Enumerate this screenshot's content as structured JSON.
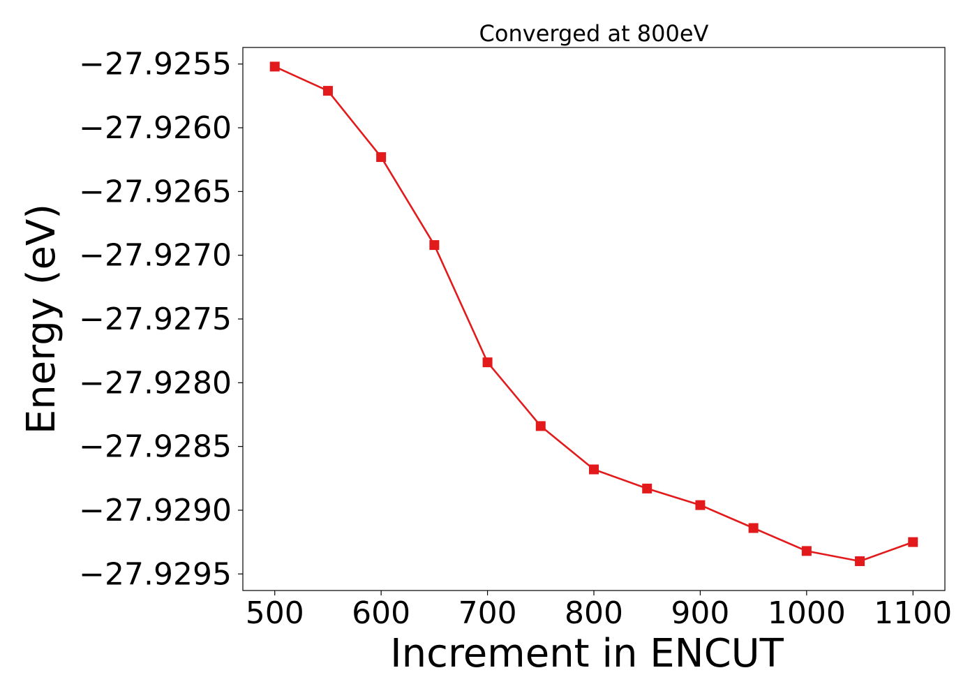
{
  "chart_data": {
    "type": "line",
    "title": "Converged at 800eV",
    "xlabel": "Increment in ENCUT",
    "ylabel": "Energy (eV)",
    "xlim": [
      470,
      1130
    ],
    "ylim": [
      -27.92963,
      -27.92537
    ],
    "xticks": [
      500,
      600,
      700,
      800,
      900,
      1000,
      1100
    ],
    "xtick_labels": [
      "500",
      "600",
      "700",
      "800",
      "900",
      "1000",
      "1100"
    ],
    "yticks": [
      -27.9255,
      -27.926,
      -27.9265,
      -27.927,
      -27.9275,
      -27.928,
      -27.9285,
      -27.929,
      -27.9295
    ],
    "ytick_labels": [
      "−27.9255",
      "−27.9260",
      "−27.9265",
      "−27.9270",
      "−27.9275",
      "−27.9280",
      "−27.9285",
      "−27.9290",
      "−27.9295"
    ],
    "grid": false,
    "legend": "none",
    "series": [
      {
        "color": "#e31a1c",
        "marker": "square",
        "x": [
          500,
          550,
          600,
          650,
          700,
          750,
          800,
          850,
          900,
          950,
          1000,
          1050,
          1100
        ],
        "y": [
          -27.92552,
          -27.92571,
          -27.92623,
          -27.92692,
          -27.92784,
          -27.92834,
          -27.92868,
          -27.92883,
          -27.92896,
          -27.92914,
          -27.92932,
          -27.9294,
          -27.92925
        ]
      }
    ]
  }
}
